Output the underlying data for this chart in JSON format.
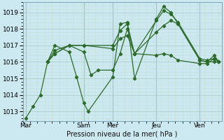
{
  "xlabel": "Pression niveau de la mer( hPa )",
  "background_color": "#cce8f0",
  "grid_color_major": "#b0d0c8",
  "grid_color_minor": "#c8e0d8",
  "line_color": "#2d6b2d",
  "ylim": [
    1012.4,
    1019.6
  ],
  "yticks": [
    1013,
    1014,
    1015,
    1016,
    1017,
    1018,
    1019
  ],
  "day_labels": [
    "Mar",
    "Sam",
    "Mer",
    "Jeu",
    "Ven"
  ],
  "day_positions": [
    0,
    4,
    6,
    9,
    12
  ],
  "xlim": [
    -0.2,
    13.5
  ],
  "series": [
    [
      [
        0,
        1012.6
      ],
      [
        0.5,
        1013.3
      ],
      [
        1,
        1014.0
      ],
      [
        1.5,
        1016.0
      ],
      [
        2,
        1017.0
      ],
      [
        3,
        1016.6
      ],
      [
        3.5,
        1015.1
      ],
      [
        4,
        1013.5
      ],
      [
        4.3,
        1013.0
      ],
      [
        6,
        1015.1
      ],
      [
        6.5,
        1018.3
      ],
      [
        7,
        1018.4
      ],
      [
        7.5,
        1015.0
      ],
      [
        9,
        1018.6
      ],
      [
        9.5,
        1019.35
      ],
      [
        10,
        1019.0
      ],
      [
        10.5,
        1018.3
      ],
      [
        12,
        1016.1
      ],
      [
        12.5,
        1016.0
      ],
      [
        13,
        1016.4
      ],
      [
        13.3,
        1016.0
      ]
    ],
    [
      [
        1.5,
        1016.0
      ],
      [
        2,
        1016.7
      ],
      [
        3,
        1017.0
      ],
      [
        4,
        1017.0
      ],
      [
        6,
        1016.8
      ],
      [
        6.5,
        1017.4
      ],
      [
        7,
        1017.6
      ],
      [
        7.5,
        1016.5
      ],
      [
        9,
        1017.8
      ],
      [
        9.5,
        1018.2
      ],
      [
        10,
        1018.5
      ],
      [
        10.5,
        1018.3
      ],
      [
        12,
        1016.1
      ],
      [
        12.5,
        1016.0
      ],
      [
        13,
        1016.0
      ],
      [
        13.3,
        1016.0
      ]
    ],
    [
      [
        1.5,
        1016.0
      ],
      [
        2,
        1016.5
      ],
      [
        3,
        1017.0
      ],
      [
        4,
        1017.0
      ],
      [
        6,
        1017.0
      ],
      [
        6.5,
        1017.9
      ],
      [
        7,
        1018.3
      ],
      [
        7.5,
        1016.5
      ],
      [
        9,
        1018.5
      ],
      [
        9.5,
        1019.1
      ],
      [
        10,
        1018.9
      ],
      [
        10.5,
        1018.4
      ],
      [
        12,
        1016.2
      ],
      [
        12.5,
        1016.1
      ],
      [
        13,
        1016.2
      ],
      [
        13.3,
        1016.0
      ]
    ],
    [
      [
        1.5,
        1016.0
      ],
      [
        2,
        1016.5
      ],
      [
        3,
        1017.0
      ],
      [
        4,
        1016.6
      ],
      [
        4.5,
        1015.2
      ],
      [
        5,
        1015.5
      ],
      [
        6,
        1015.5
      ],
      [
        6.5,
        1016.5
      ],
      [
        7,
        1018.0
      ],
      [
        7.5,
        1016.5
      ],
      [
        9,
        1016.4
      ],
      [
        9.5,
        1016.5
      ],
      [
        10,
        1016.4
      ],
      [
        10.5,
        1016.1
      ],
      [
        12,
        1015.9
      ],
      [
        12.5,
        1015.9
      ],
      [
        13,
        1016.2
      ],
      [
        13.3,
        1016.0
      ]
    ]
  ]
}
